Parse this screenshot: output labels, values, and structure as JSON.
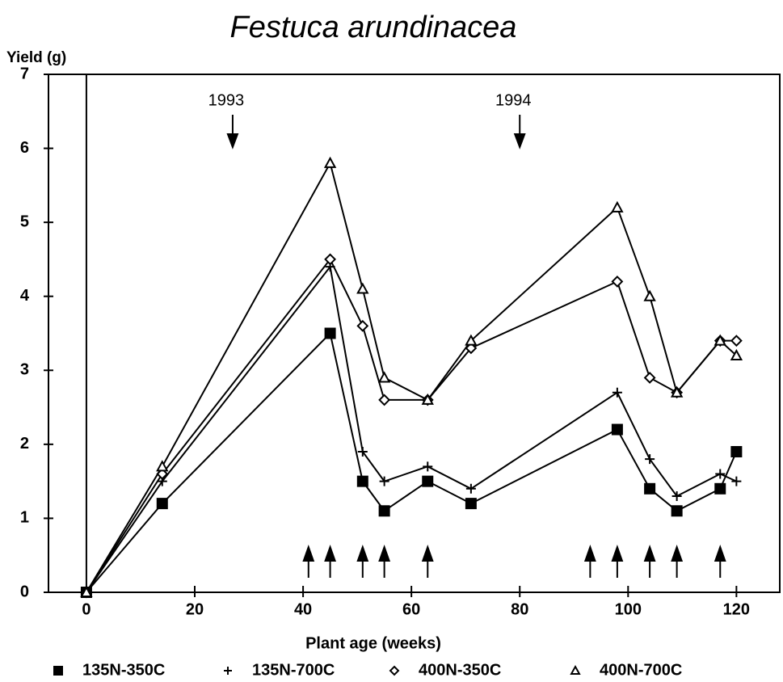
{
  "chart_data": {
    "type": "line",
    "title": "Festuca arundinacea",
    "ylabel": "Yield (g)",
    "xlabel": "Plant age (weeks)",
    "x": [
      0,
      14,
      45,
      51,
      55,
      63,
      71,
      98,
      104,
      109,
      117,
      120
    ],
    "series": [
      {
        "name": "135N-350C",
        "color": "#000000",
        "marker": "square",
        "values": [
          0,
          1.2,
          3.5,
          1.5,
          1.1,
          1.5,
          1.2,
          2.2,
          1.4,
          1.1,
          1.4,
          1.9
        ]
      },
      {
        "name": "135N-700C",
        "color": "#000000",
        "marker": "plus",
        "values": [
          0,
          1.5,
          4.4,
          1.9,
          1.5,
          1.7,
          1.4,
          2.7,
          1.8,
          1.3,
          1.6,
          1.5
        ]
      },
      {
        "name": "400N-350C",
        "color": "#000000",
        "marker": "diamond",
        "values": [
          0,
          1.6,
          4.5,
          3.6,
          2.6,
          2.6,
          3.3,
          4.2,
          2.9,
          2.7,
          3.4,
          3.4
        ]
      },
      {
        "name": "400N-700C",
        "color": "#000000",
        "marker": "triangle",
        "values": [
          0,
          1.7,
          5.8,
          4.1,
          2.9,
          2.6,
          3.4,
          5.2,
          4.0,
          2.7,
          3.4,
          3.2
        ]
      }
    ],
    "annotations": [
      {
        "text": "1993",
        "x": 27
      },
      {
        "text": "1994",
        "x": 80
      }
    ],
    "harvest_arrows": [
      41,
      45,
      51,
      55,
      63,
      93,
      98,
      104,
      109,
      117
    ],
    "xlim": [
      -7,
      128
    ],
    "ylim": [
      0,
      7
    ],
    "xticks": [
      0,
      20,
      40,
      60,
      80,
      100,
      120
    ],
    "yticks": [
      0,
      1,
      2,
      3,
      4,
      5,
      6,
      7
    ]
  }
}
